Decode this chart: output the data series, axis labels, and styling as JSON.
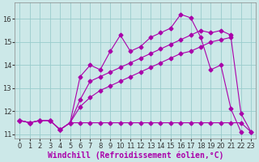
{
  "xlabel": "Windchill (Refroidissement éolien,°C)",
  "bg_color": "#cce8e8",
  "grid_color": "#99cccc",
  "line_color": "#aa00aa",
  "xlim": [
    -0.5,
    23.5
  ],
  "ylim": [
    10.8,
    16.7
  ],
  "yticks": [
    11,
    12,
    13,
    14,
    15,
    16
  ],
  "xticks": [
    0,
    1,
    2,
    3,
    4,
    5,
    6,
    7,
    8,
    9,
    10,
    11,
    12,
    13,
    14,
    15,
    16,
    17,
    18,
    19,
    20,
    21,
    22,
    23
  ],
  "series": [
    {
      "x": [
        0,
        1,
        2,
        3,
        4,
        5,
        6,
        7,
        8,
        9,
        10,
        11,
        12,
        13,
        14,
        15,
        16,
        17,
        18,
        19,
        20,
        21,
        22,
        23
      ],
      "y": [
        11.6,
        11.5,
        11.6,
        11.6,
        11.2,
        11.5,
        11.5,
        11.5,
        11.5,
        11.5,
        11.5,
        11.5,
        11.5,
        11.5,
        11.5,
        11.5,
        11.5,
        11.5,
        11.5,
        11.5,
        11.5,
        11.5,
        11.5,
        11.1
      ]
    },
    {
      "x": [
        0,
        1,
        2,
        3,
        4,
        5,
        6,
        7,
        8,
        9,
        10,
        11,
        12,
        13,
        14,
        15,
        16,
        17,
        18,
        19,
        20,
        21,
        22,
        23
      ],
      "y": [
        11.6,
        11.5,
        11.6,
        11.6,
        11.2,
        11.5,
        12.2,
        12.6,
        12.9,
        13.1,
        13.3,
        13.5,
        13.7,
        13.9,
        14.1,
        14.3,
        14.5,
        14.6,
        14.8,
        15.0,
        15.1,
        15.2,
        11.9,
        11.1
      ]
    },
    {
      "x": [
        0,
        1,
        2,
        3,
        4,
        5,
        6,
        7,
        8,
        9,
        10,
        11,
        12,
        13,
        14,
        15,
        16,
        17,
        18,
        19,
        20,
        21,
        22,
        23
      ],
      "y": [
        11.6,
        11.5,
        11.6,
        11.6,
        11.2,
        11.5,
        13.5,
        14.0,
        13.8,
        14.6,
        15.3,
        14.6,
        14.8,
        15.2,
        15.4,
        15.6,
        16.2,
        16.05,
        15.2,
        13.8,
        14.0,
        12.1,
        11.1,
        null
      ]
    },
    {
      "x": [
        0,
        1,
        2,
        3,
        4,
        5,
        6,
        7,
        8,
        9,
        10,
        11,
        12,
        13,
        14,
        15,
        16,
        17,
        18,
        19,
        20,
        21,
        22,
        23
      ],
      "y": [
        11.6,
        11.5,
        11.6,
        11.6,
        11.2,
        11.5,
        12.5,
        13.3,
        13.5,
        13.7,
        13.9,
        14.1,
        14.3,
        14.5,
        14.7,
        14.9,
        15.1,
        15.3,
        15.5,
        15.4,
        15.5,
        15.3,
        null,
        null
      ]
    }
  ],
  "tick_fontsize": 6,
  "xlabel_fontsize": 7,
  "marker": "D",
  "markersize": 2.5,
  "linewidth": 0.8
}
